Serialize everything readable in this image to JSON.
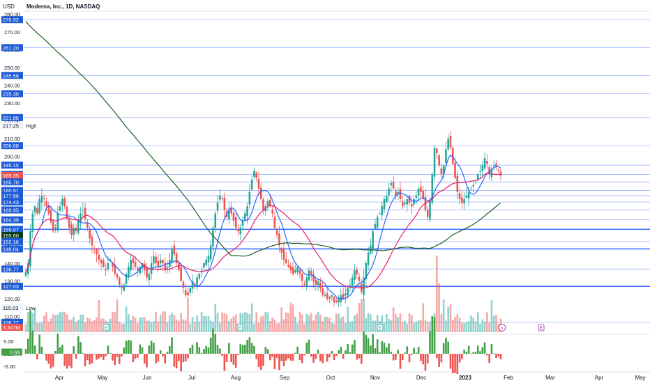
{
  "header": {
    "unit": "USD",
    "title": "Moderna, Inc., 1D, NASDAQ"
  },
  "chart_data": {
    "type": "candlestick",
    "price_axis": {
      "ticks": [
        280,
        270,
        260,
        250,
        240,
        230,
        220,
        210,
        200,
        190,
        180,
        170,
        160,
        150,
        140,
        130,
        120,
        110
      ]
    },
    "price_tags": [
      {
        "value": 276.92,
        "label": "276.92",
        "style": "level",
        "line": true
      },
      {
        "value": 261.2,
        "label": "261.20",
        "style": "level",
        "line": true
      },
      {
        "value": 245.58,
        "label": "245.58",
        "style": "level",
        "line": true
      },
      {
        "value": 235.3,
        "label": "235.30",
        "style": "level",
        "line": true
      },
      {
        "value": 221.88,
        "label": "221.88",
        "style": "level",
        "line": true
      },
      {
        "value": 217.25,
        "label": "217.25",
        "style": "plain",
        "line": false,
        "note": "High"
      },
      {
        "value": 206.08,
        "label": "206.08",
        "style": "level",
        "line": true
      },
      {
        "value": 195.15,
        "label": "195.15",
        "style": "level",
        "line": true
      },
      {
        "value": 189.96,
        "label": "189.96",
        "style": "level",
        "line": true
      },
      {
        "value": 189.35,
        "label": "189.35",
        "style": "red",
        "line": false
      },
      {
        "value": 186.25,
        "label": "186.25",
        "style": "red",
        "line": false
      },
      {
        "value": 185.7,
        "label": "185.70",
        "style": "level",
        "line": true
      },
      {
        "value": 180.91,
        "label": "180.91",
        "style": "level",
        "line": true
      },
      {
        "value": 177.96,
        "label": "177.96",
        "style": "level",
        "line": true
      },
      {
        "value": 174.43,
        "label": "174.43",
        "style": "level",
        "line": true
      },
      {
        "value": 169.95,
        "label": "169.95",
        "style": "level",
        "line": true
      },
      {
        "value": 164.39,
        "label": "164.39",
        "style": "level",
        "line": true
      },
      {
        "value": 159.07,
        "label": "159.07",
        "style": "level",
        "line": true,
        "thick": true
      },
      {
        "value": 155.6,
        "label": "155.60",
        "style": "dark",
        "line": false
      },
      {
        "value": 152.16,
        "label": "152.16",
        "style": "level",
        "line": true
      },
      {
        "value": 148.04,
        "label": "148.04",
        "style": "level",
        "line": true,
        "thick": true
      },
      {
        "value": 136.77,
        "label": "136.77",
        "style": "level",
        "line": true
      },
      {
        "value": 127.03,
        "label": "127.03",
        "style": "level",
        "line": true,
        "thick": true
      },
      {
        "value": 115.03,
        "label": "115.03",
        "style": "plain",
        "line": false,
        "note": "Low"
      },
      {
        "value": 106.77,
        "label": "106.77",
        "style": "level",
        "line": true
      }
    ],
    "volume_tag": "3.347M",
    "x_labels": [
      "Apr",
      "May",
      "Jun",
      "Jul",
      "Aug",
      "Sep",
      "Oct",
      "Nov",
      "Dec",
      "2023",
      "Feb",
      "Mar",
      "Apr",
      "May"
    ],
    "closes": [
      135,
      140,
      158,
      168,
      172,
      168,
      176,
      178,
      176,
      172,
      168,
      163,
      158,
      160,
      168,
      172,
      176,
      172,
      165,
      160,
      156,
      160,
      158,
      164,
      168,
      170,
      165,
      160,
      154,
      150,
      148,
      145,
      142,
      140,
      138,
      136,
      140,
      142,
      138,
      134,
      132,
      128,
      126,
      128,
      134,
      138,
      142,
      140,
      138,
      136,
      138,
      140,
      136,
      132,
      134,
      140,
      144,
      140,
      138,
      142,
      140,
      136,
      138,
      142,
      148,
      145,
      140,
      136,
      130,
      126,
      122,
      122,
      126,
      130,
      128,
      132,
      134,
      136,
      140,
      142,
      144,
      150,
      160,
      168,
      174,
      178,
      176,
      170,
      166,
      170,
      168,
      164,
      160,
      158,
      160,
      164,
      168,
      172,
      180,
      187,
      192,
      188,
      182,
      176,
      170,
      172,
      175,
      172,
      168,
      160,
      156,
      150,
      146,
      142,
      140,
      138,
      136,
      134,
      136,
      138,
      134,
      130,
      128,
      132,
      136,
      134,
      130,
      128,
      130,
      126,
      122,
      122,
      120,
      120,
      122,
      118,
      118,
      120,
      122,
      120,
      123,
      126,
      128,
      132,
      136,
      134,
      130,
      124,
      132,
      140,
      146,
      150,
      158,
      162,
      166,
      168,
      172,
      176,
      178,
      182,
      185,
      182,
      178,
      180,
      176,
      172,
      174,
      176,
      174,
      172,
      176,
      178,
      182,
      180,
      176,
      170,
      166,
      175,
      190,
      205,
      202,
      195,
      190,
      195,
      204,
      210,
      205,
      196,
      188,
      180,
      176,
      174,
      176,
      178,
      180,
      182,
      184,
      186,
      190,
      192,
      195,
      199,
      196,
      190,
      193,
      195,
      194,
      192,
      189.35
    ],
    "moving_averages": [
      {
        "name": "short",
        "color": "#2962ff"
      },
      {
        "name": "medium",
        "color": "#e91e63"
      },
      {
        "name": "long",
        "color": "#1b5e20"
      }
    ],
    "earnings_markers": [
      "E",
      "E",
      "E",
      "E"
    ],
    "dividend_marker": "⚡",
    "oscillator": {
      "ticks": [
        5.0,
        0.0,
        -5.0
      ],
      "tag": "0.69"
    },
    "colors": {
      "up": "#26a69a",
      "down": "#ef5350",
      "level": "#2962ff",
      "tag": "#1e5bd7",
      "dark": "#0b3d12",
      "grid": "#e0e3eb"
    }
  }
}
